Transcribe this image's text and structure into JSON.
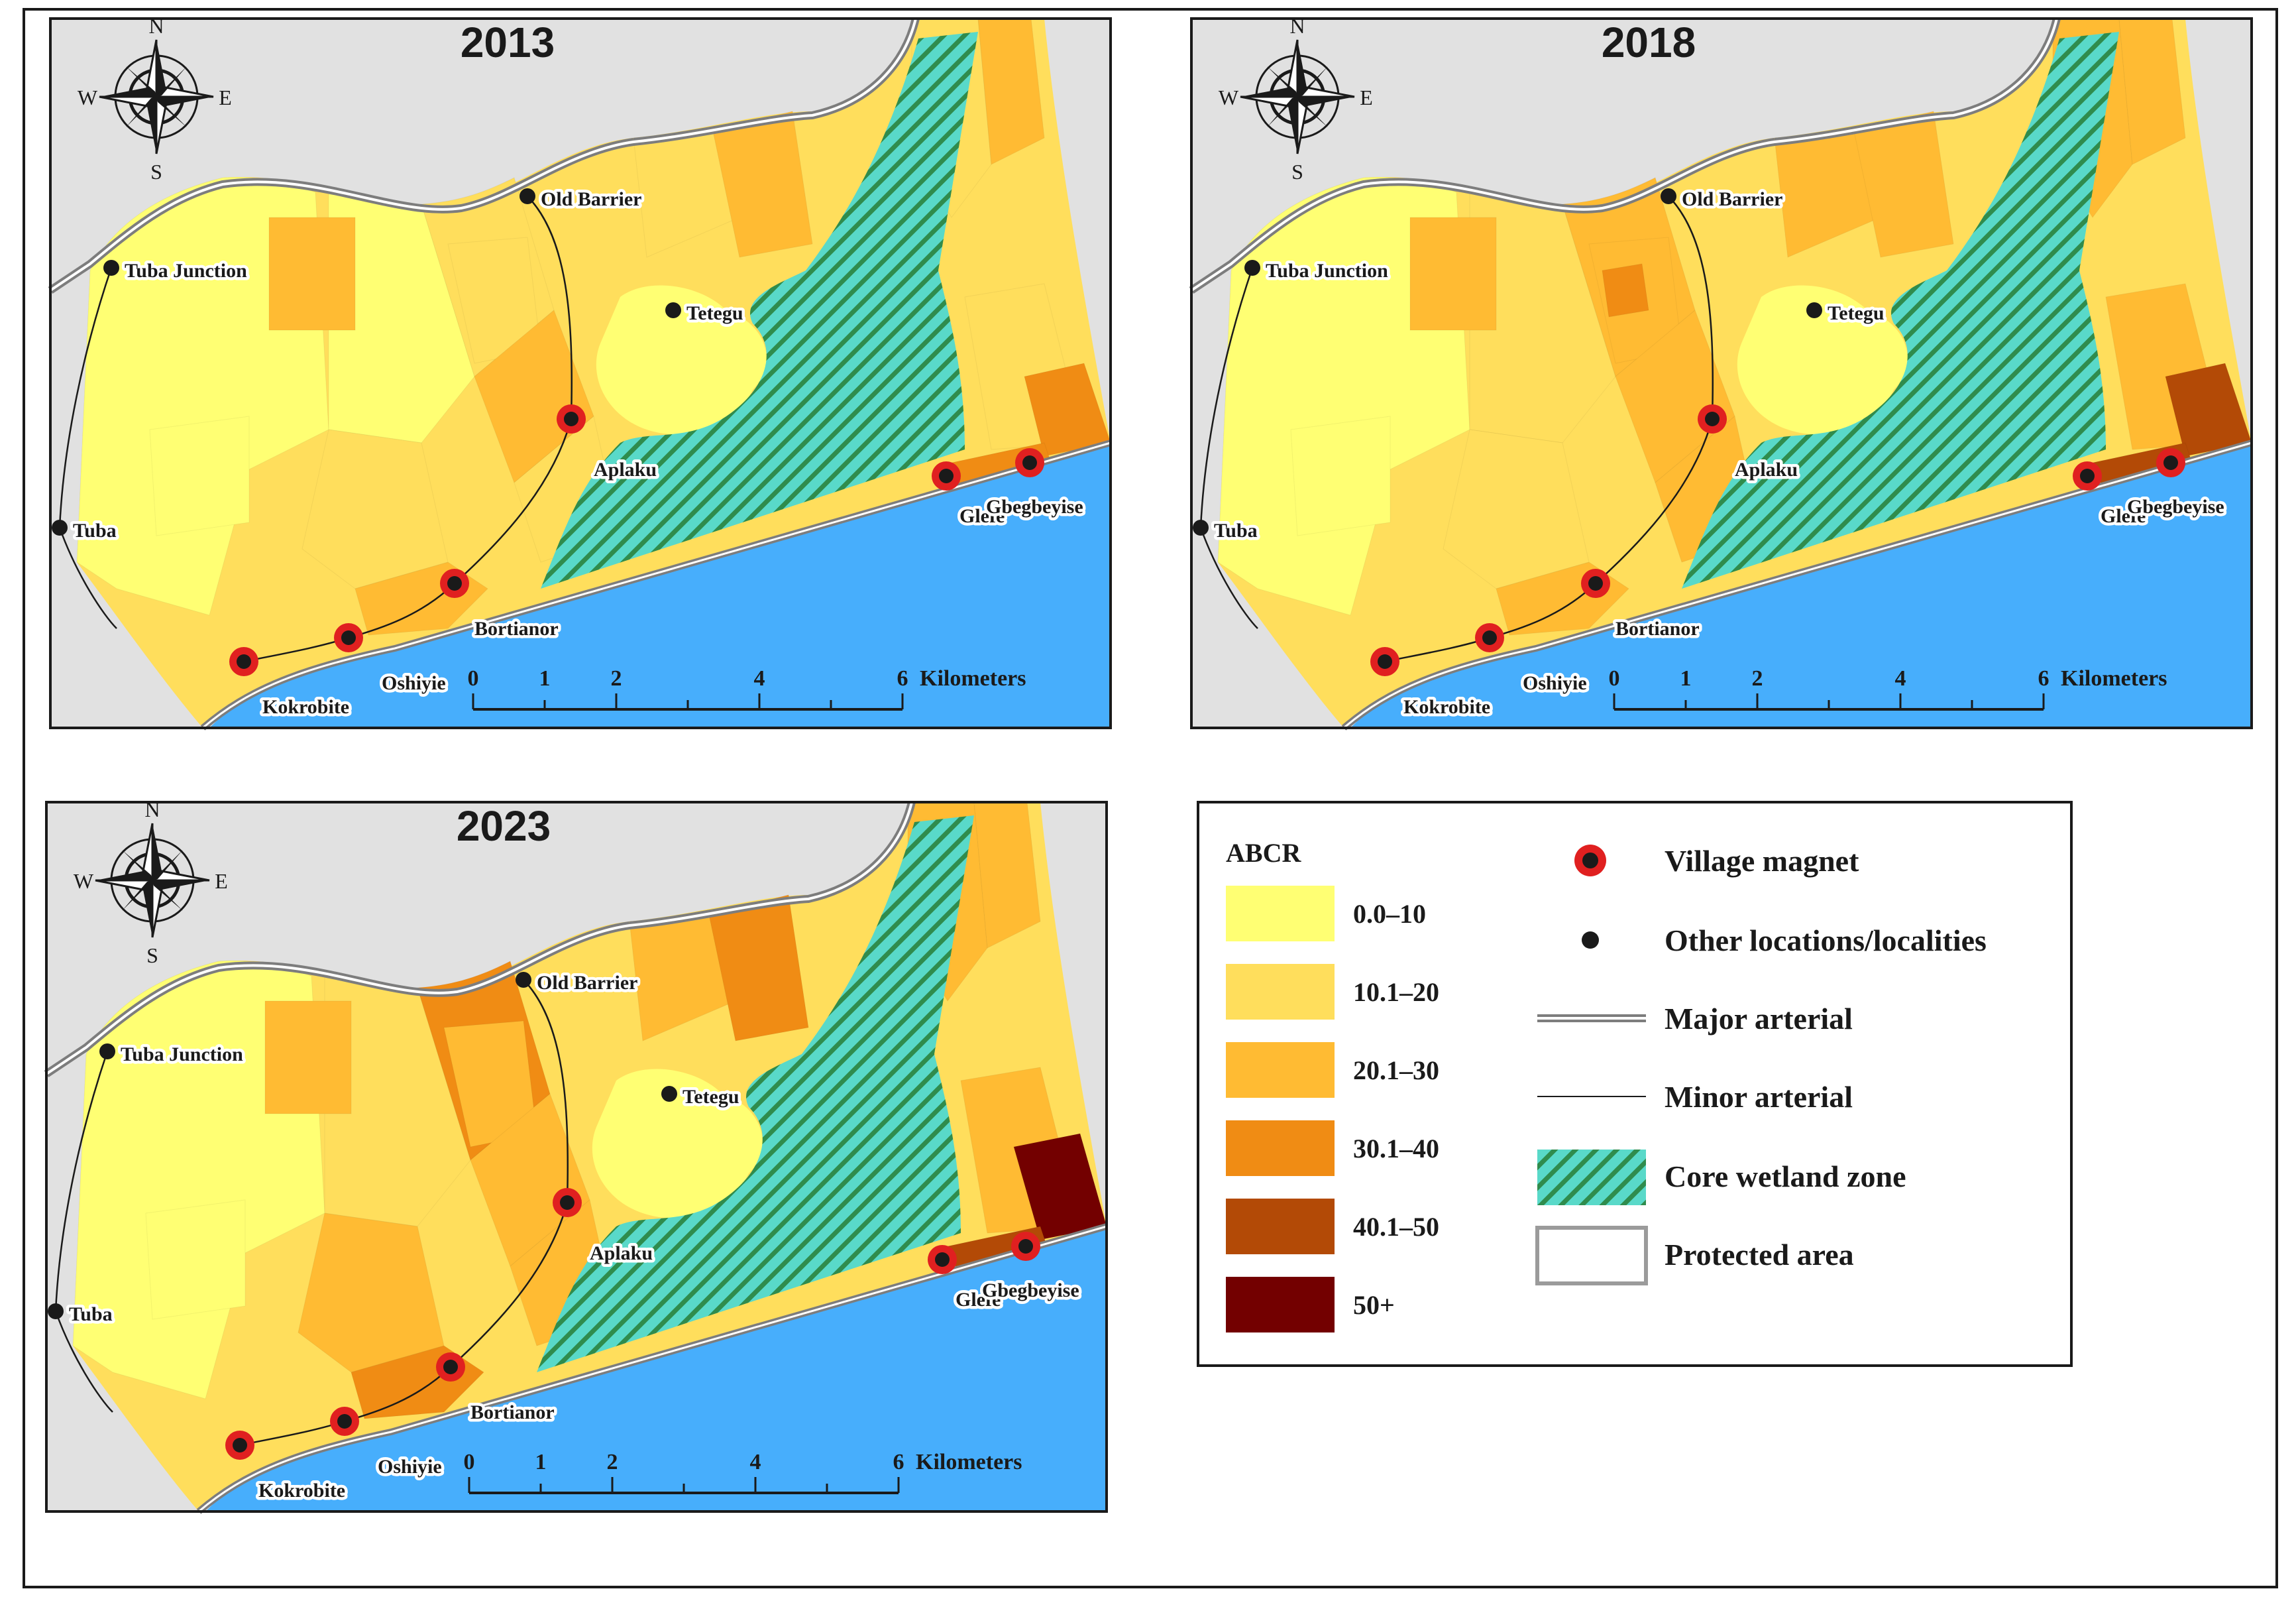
{
  "maps": [
    {
      "year": "2013",
      "labels": {
        "tuba_junction": "Tuba Junction",
        "old_barrier": "Old Barrier",
        "tetegu": "Tetegu",
        "tuba": "Tuba",
        "aplaku": "Aplaku",
        "bortianor": "Bortianor",
        "oshiyie": "Oshiyie",
        "kokrobite": "Kokrobite",
        "glefe": "Glefe",
        "gbegbeyise": "Gbegbeyise"
      },
      "scale": {
        "ticks": [
          "0",
          "1",
          "2",
          "4",
          "6"
        ],
        "unit": "Kilometers"
      },
      "compass": {
        "n": "N",
        "w": "W",
        "e": "E",
        "s": "S"
      }
    },
    {
      "year": "2018",
      "labels": {
        "tuba_junction": "Tuba Junction",
        "old_barrier": "Old Barrier",
        "tetegu": "Tetegu",
        "tuba": "Tuba",
        "aplaku": "Aplaku",
        "bortianor": "Bortianor",
        "oshiyie": "Oshiyie",
        "kokrobite": "Kokrobite",
        "glefe": "Glefe",
        "gbegbeyise": "Gbegbeyise"
      },
      "scale": {
        "ticks": [
          "0",
          "1",
          "2",
          "4",
          "6"
        ],
        "unit": "Kilometers"
      },
      "compass": {
        "n": "N",
        "w": "W",
        "e": "E",
        "s": "S"
      }
    },
    {
      "year": "2023",
      "labels": {
        "tuba_junction": "Tuba Junction",
        "old_barrier": "Old Barrier",
        "tetegu": "Tetegu",
        "tuba": "Tuba",
        "aplaku": "Aplaku",
        "bortianor": "Bortianor",
        "oshiyie": "Oshiyie",
        "kokrobite": "Kokrobite",
        "glefe": "Glefe",
        "gbegbeyise": "Gbegbeyise"
      },
      "scale": {
        "ticks": [
          "0",
          "1",
          "2",
          "4",
          "6"
        ],
        "unit": "Kilometers"
      },
      "compass": {
        "n": "N",
        "w": "W",
        "e": "E",
        "s": "S"
      }
    }
  ],
  "legend": {
    "abcr_title": "ABCR",
    "classes": [
      {
        "label": "0.0–10",
        "color": "#ffff73"
      },
      {
        "label": "10.1–20",
        "color": "#ffde5c"
      },
      {
        "label": "20.1–30",
        "color": "#ffbb33"
      },
      {
        "label": "30.1–40",
        "color": "#f08c14"
      },
      {
        "label": "40.1–50",
        "color": "#b34a06"
      },
      {
        "label": "50+",
        "color": "#730000"
      }
    ],
    "symbols": {
      "village_magnet": "Village magnet",
      "other_locations": "Other locations/localities",
      "major_arterial": "Major arterial",
      "minor_arterial": "Minor arterial",
      "core_wetland": "Core wetland zone",
      "protected_area": "Protected area"
    }
  },
  "colors": {
    "sea": "#47aefc",
    "land_outside": "#e1e1e1",
    "wetland_fill": "#59d9c9",
    "wetland_hatch": "#2f8c4d",
    "road": "#7d7d7d",
    "village_ring": "#e02020",
    "frame": "#1a1a1a"
  }
}
